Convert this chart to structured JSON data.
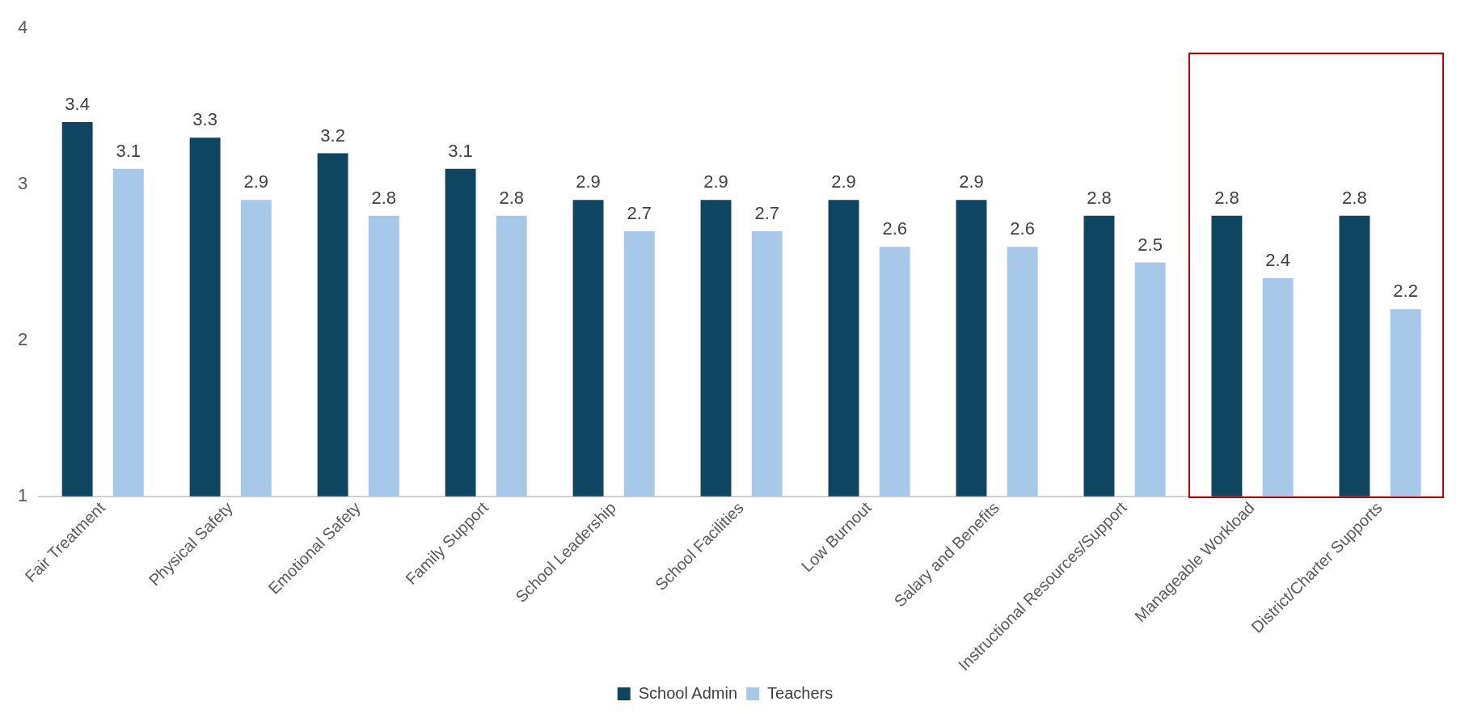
{
  "chart_data": {
    "type": "bar",
    "categories": [
      "Fair Treatment",
      "Physical Safety",
      "Emotional Safety",
      "Family Support",
      "School Leadership",
      "School Facilities",
      "Low Burnout",
      "Salary and Benefits",
      "Instructional Resources/Support",
      "Manageable Workload",
      "District/Charter Supports"
    ],
    "series": [
      {
        "name": "School Admin",
        "color": "#0e4561",
        "values": [
          3.4,
          3.3,
          3.2,
          3.1,
          2.9,
          2.9,
          2.9,
          2.9,
          2.8,
          2.8,
          2.8
        ]
      },
      {
        "name": "Teachers",
        "color": "#a6c9ea",
        "values": [
          3.1,
          2.9,
          2.8,
          2.8,
          2.7,
          2.7,
          2.6,
          2.6,
          2.5,
          2.4,
          2.2
        ]
      }
    ],
    "ylim": [
      1,
      4
    ],
    "yticks": [
      1,
      2,
      3,
      4
    ],
    "grid": false,
    "legend": "bottom",
    "data_labels": true
  }
}
